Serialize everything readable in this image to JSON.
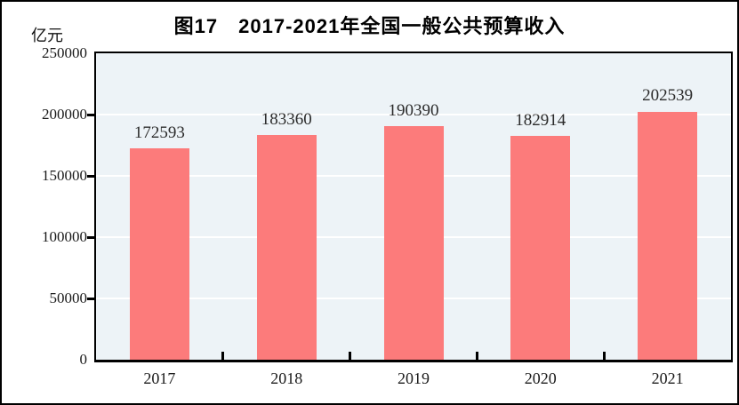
{
  "chart_data": {
    "type": "bar",
    "title": "图17　2017-2021年全国一般公共预算收入",
    "unit_label": "亿元",
    "categories": [
      "2017",
      "2018",
      "2019",
      "2020",
      "2021"
    ],
    "values": [
      172593,
      183360,
      190390,
      182914,
      202539
    ],
    "series": [
      {
        "name": "全国一般公共预算收入",
        "values": [
          172593,
          183360,
          190390,
          182914,
          202539
        ]
      }
    ],
    "xlabel": "",
    "ylabel": "亿元",
    "ylim": [
      0,
      250000
    ],
    "yticks": [
      0,
      50000,
      100000,
      150000,
      200000,
      250000
    ],
    "grid": "horizontal",
    "legend_position": "none",
    "data_labels_shown": true,
    "colors": {
      "bar_fill": "#fc7b7b",
      "plot_background": "#edf3f7",
      "grid_line": "#ffffff",
      "axis_line": "#000000",
      "text": "#1a1a1a"
    }
  }
}
